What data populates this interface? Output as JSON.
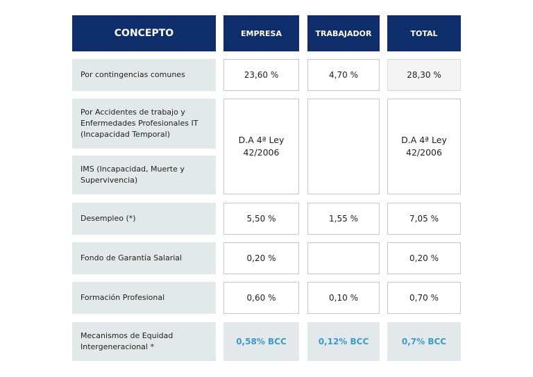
{
  "headers": {
    "concepto": "CONCEPTO",
    "empresa": "EMPRESA",
    "trabajador": "TRABAJADOR",
    "total": "TOTAL"
  },
  "rows": {
    "contingencias": {
      "label": "Por contingencias comunes",
      "empresa": "23,60 %",
      "trabajador": "4,70 %",
      "total": "28,30 %"
    },
    "accidentes": {
      "label": "Por Accidentes de trabajo y Enfermedades Profesionales IT (Incapacidad Temporal)"
    },
    "ims": {
      "label": "IMS (Incapacidad, Muerte y Supervivencia)"
    },
    "merged": {
      "empresa": "D.A 4ª Ley 42/2006",
      "trabajador": "",
      "total": "D.A 4ª Ley 42/2006"
    },
    "desempleo": {
      "label": "Desempleo (*)",
      "empresa": "5,50 %",
      "trabajador": "1,55 %",
      "total": "7,05 %"
    },
    "fogasa": {
      "label": "Fondo de Garantía Salarial",
      "empresa": "0,20 %",
      "trabajador": "",
      "total": "0,20 %"
    },
    "formacion": {
      "label": "Formación Profesional",
      "empresa": "0,60 %",
      "trabajador": "0,10 %",
      "total": "0,70 %"
    },
    "mecanismos": {
      "label": "Mecanismos de Equidad Intergeneracional *",
      "empresa": "0,58% BCC",
      "trabajador": "0,12% BCC",
      "total": "0,7% BCC"
    }
  }
}
